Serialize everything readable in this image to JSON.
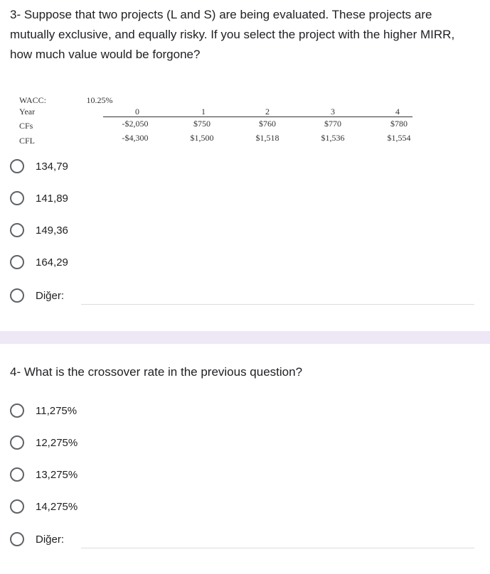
{
  "q3": {
    "question": "3- Suppose that two projects (L and S) are being evaluated. These projects are mutually exclusive, and equally risky. If you select the project with the higher MIRR, how much value would be forgone?",
    "table": {
      "wacc_label": "WACC:",
      "wacc_value": "10.25%",
      "year_label": "Year",
      "cfs_label": "CFs",
      "cfl_label": "CFL",
      "years": [
        "0",
        "1",
        "2",
        "3",
        "4"
      ],
      "cfs": [
        "-$2,050",
        "$750",
        "$760",
        "$770",
        "$780"
      ],
      "cfl": [
        "-$4,300",
        "$1,500",
        "$1,518",
        "$1,536",
        "$1,554"
      ]
    },
    "options": [
      "134,79",
      "141,89",
      "149,36",
      "164,29"
    ],
    "other_label": "Diğer:"
  },
  "q4": {
    "question": "4- What is the crossover rate in the previous question?",
    "options": [
      "11,275%",
      "12,275%",
      "13,275%",
      "14,275%"
    ],
    "other_label": "Diğer:"
  },
  "colors": {
    "divider": "#ede7f6",
    "radio_border": "#5f6368",
    "text": "#202124"
  }
}
